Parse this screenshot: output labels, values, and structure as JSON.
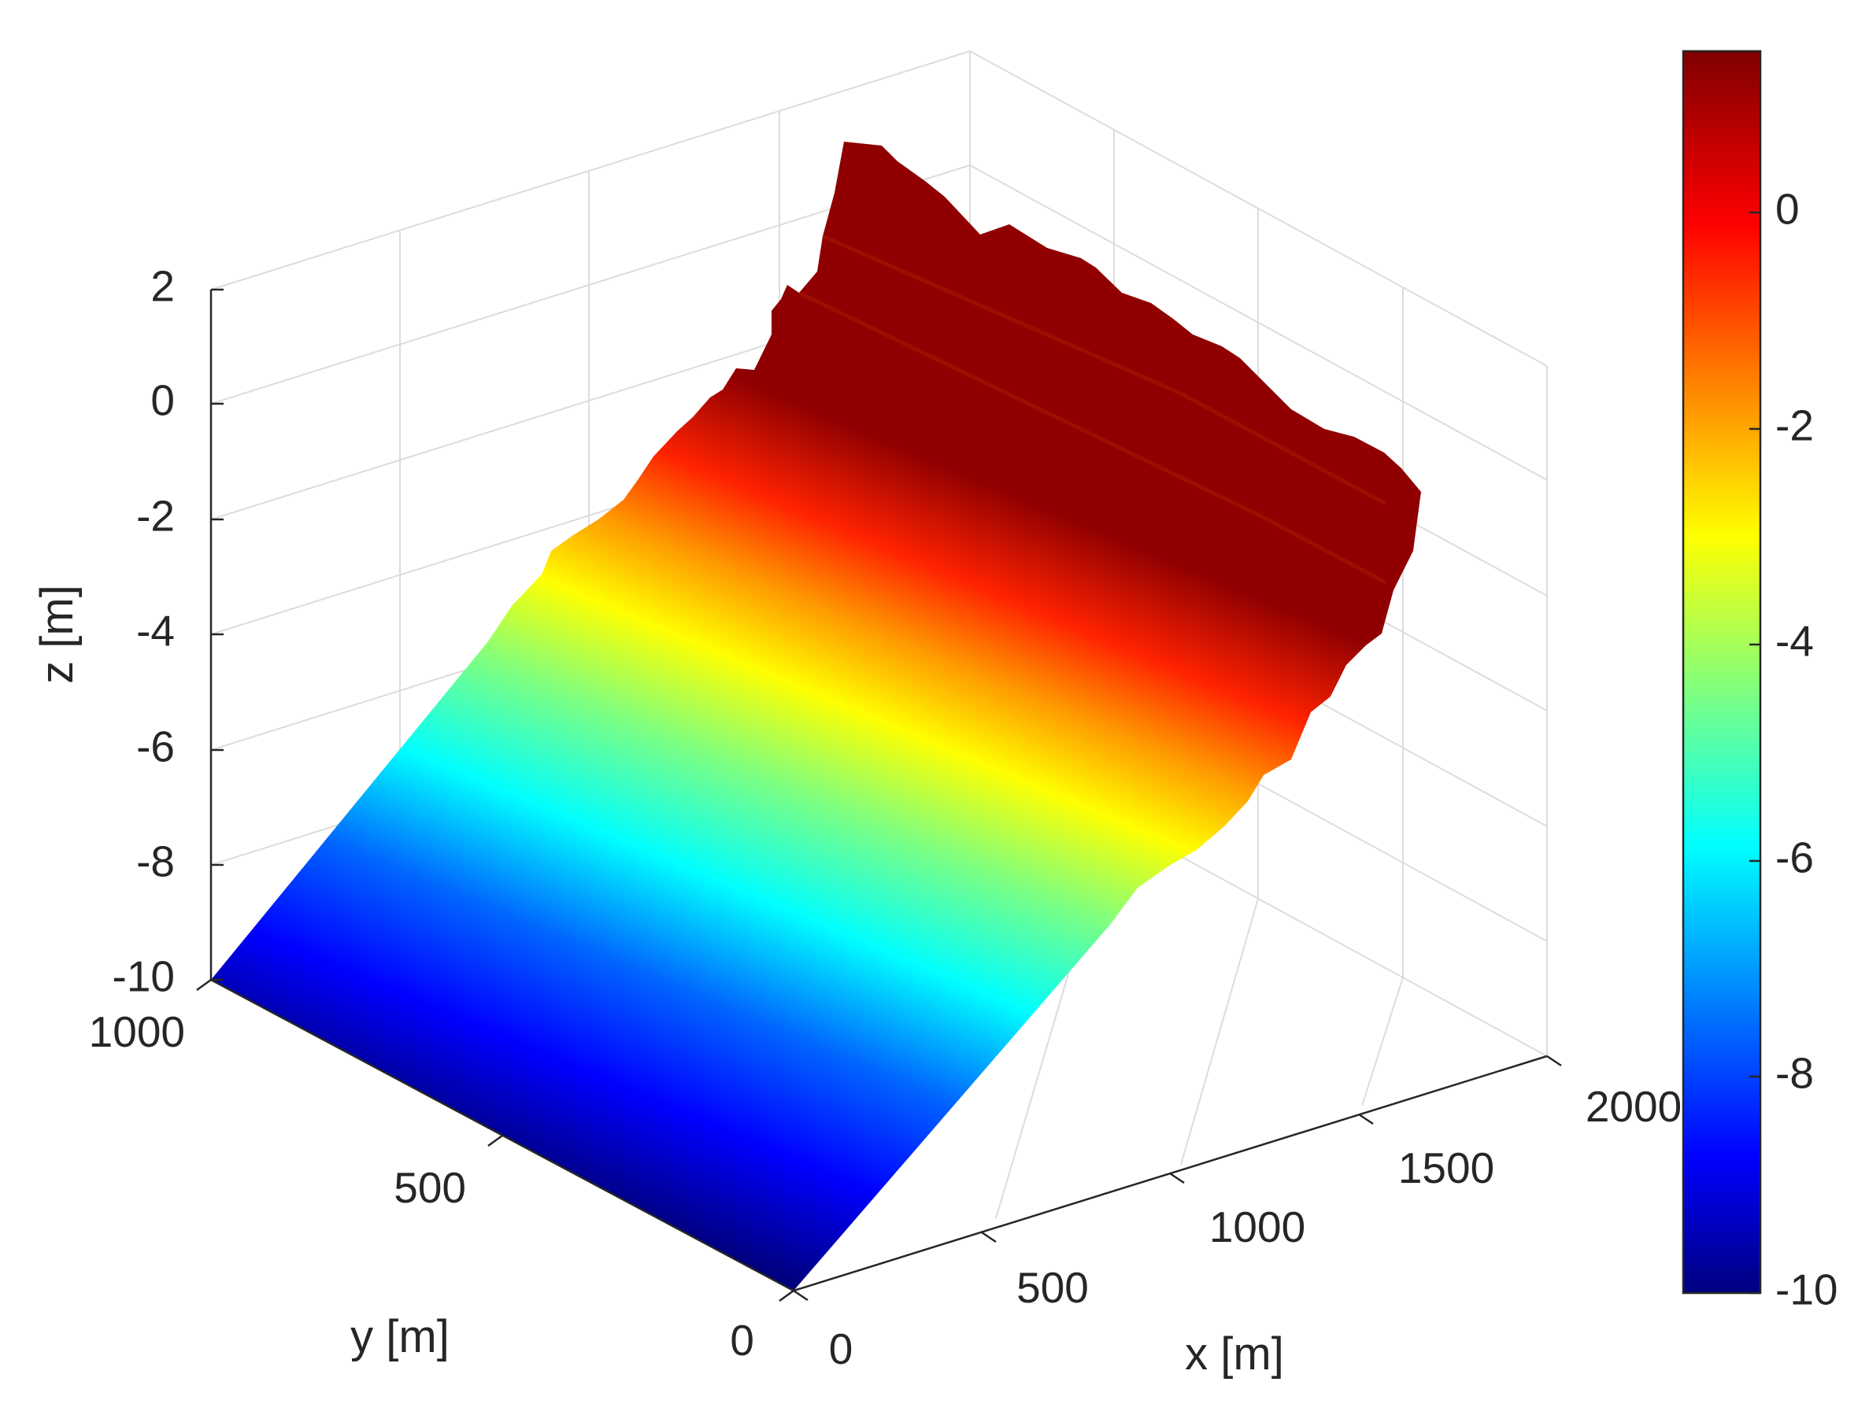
{
  "chart_data": {
    "type": "surface",
    "xlabel": "x [m]",
    "ylabel": "y [m]",
    "zlabel": "z [m]",
    "xlim": [
      0,
      2000
    ],
    "ylim": [
      0,
      1000
    ],
    "zlim": [
      -10,
      2
    ],
    "x_ticks": [
      "0",
      "500",
      "1000",
      "1500",
      "2000"
    ],
    "y_ticks": [
      "0",
      "500",
      "1000"
    ],
    "z_ticks": [
      "-10",
      "-8",
      "-6",
      "-4",
      "-2",
      "0",
      "2"
    ],
    "colorbar": {
      "colormap": "jet",
      "range": [
        -10,
        1.5
      ],
      "ticks": [
        "-10",
        "-8",
        "-6",
        "-4",
        "-2",
        "0"
      ]
    },
    "grid": true,
    "surface_profile": {
      "x": [
        0,
        250,
        500,
        750,
        1000,
        1250,
        1500,
        1600,
        1700,
        1800,
        1900,
        2000
      ],
      "z": [
        -10,
        -9,
        -8,
        -7,
        -6,
        -5,
        -4,
        -3,
        -2,
        -1,
        0,
        1.2
      ]
    }
  }
}
